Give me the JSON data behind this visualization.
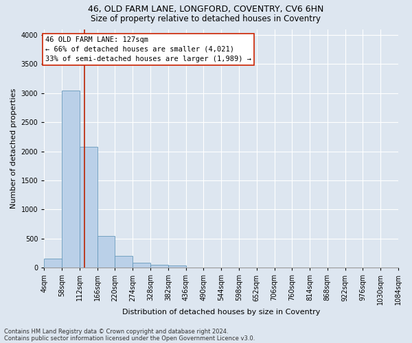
{
  "title_line1": "46, OLD FARM LANE, LONGFORD, COVENTRY, CV6 6HN",
  "title_line2": "Size of property relative to detached houses in Coventry",
  "xlabel": "Distribution of detached houses by size in Coventry",
  "ylabel": "Number of detached properties",
  "footer_line1": "Contains HM Land Registry data © Crown copyright and database right 2024.",
  "footer_line2": "Contains public sector information licensed under the Open Government Licence v3.0.",
  "bin_edges": [
    4,
    58,
    112,
    166,
    220,
    274,
    328,
    382,
    436,
    490,
    544,
    598,
    652,
    706,
    760,
    814,
    868,
    922,
    976,
    1030,
    1084
  ],
  "bar_heights": [
    150,
    3050,
    2075,
    550,
    200,
    85,
    55,
    35,
    0,
    0,
    0,
    0,
    0,
    0,
    0,
    0,
    0,
    0,
    0,
    0
  ],
  "bar_color": "#bad0e8",
  "bar_edge_color": "#6699bb",
  "property_size": 127,
  "annotation_text_line1": "46 OLD FARM LANE: 127sqm",
  "annotation_text_line2": "← 66% of detached houses are smaller (4,021)",
  "annotation_text_line3": "33% of semi-detached houses are larger (1,989) →",
  "vline_color": "#bb2200",
  "vline_x": 127,
  "annotation_box_color": "#ffffff",
  "annotation_box_edge": "#cc2200",
  "ylim": [
    0,
    4100
  ],
  "yticks": [
    0,
    500,
    1000,
    1500,
    2000,
    2500,
    3000,
    3500,
    4000
  ],
  "background_color": "#dde6f0",
  "plot_background_color": "#dde6f0",
  "grid_color": "#ffffff",
  "title_fontsize": 9,
  "subtitle_fontsize": 8.5,
  "tick_label_fontsize": 7,
  "axis_label_fontsize": 8,
  "annotation_fontsize": 7.5,
  "footer_fontsize": 6
}
